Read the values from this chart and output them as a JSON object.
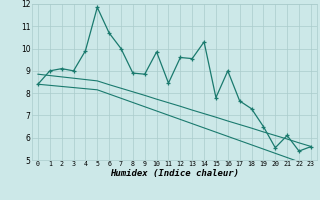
{
  "title": "",
  "xlabel": "Humidex (Indice chaleur)",
  "ylabel": "",
  "x": [
    0,
    1,
    2,
    3,
    4,
    5,
    6,
    7,
    8,
    9,
    10,
    11,
    12,
    13,
    14,
    15,
    16,
    17,
    18,
    19,
    20,
    21,
    22,
    23
  ],
  "y_main": [
    8.4,
    9.0,
    9.1,
    9.0,
    9.9,
    11.85,
    10.7,
    10.0,
    8.9,
    8.85,
    9.85,
    8.45,
    9.6,
    9.55,
    10.3,
    7.8,
    9.0,
    7.65,
    7.3,
    6.5,
    5.55,
    6.1,
    5.4,
    5.6
  ],
  "y_line1": [
    8.85,
    8.79,
    8.73,
    8.67,
    8.61,
    8.55,
    8.38,
    8.22,
    8.06,
    7.9,
    7.73,
    7.57,
    7.41,
    7.24,
    7.08,
    6.92,
    6.75,
    6.59,
    6.43,
    6.26,
    6.1,
    5.94,
    5.77,
    5.61
  ],
  "y_line2": [
    8.4,
    8.35,
    8.3,
    8.25,
    8.2,
    8.15,
    7.96,
    7.77,
    7.58,
    7.39,
    7.2,
    7.01,
    6.82,
    6.63,
    6.44,
    6.25,
    6.06,
    5.87,
    5.68,
    5.49,
    5.3,
    5.11,
    4.92,
    4.73
  ],
  "line_color": "#1a7a6e",
  "bg_color": "#cce8e8",
  "grid_color": "#aacccc",
  "ylim": [
    5,
    12
  ],
  "xlim": [
    -0.5,
    23.5
  ],
  "yticks": [
    5,
    6,
    7,
    8,
    9,
    10,
    11,
    12
  ],
  "xticks": [
    0,
    1,
    2,
    3,
    4,
    5,
    6,
    7,
    8,
    9,
    10,
    11,
    12,
    13,
    14,
    15,
    16,
    17,
    18,
    19,
    20,
    21,
    22,
    23
  ]
}
